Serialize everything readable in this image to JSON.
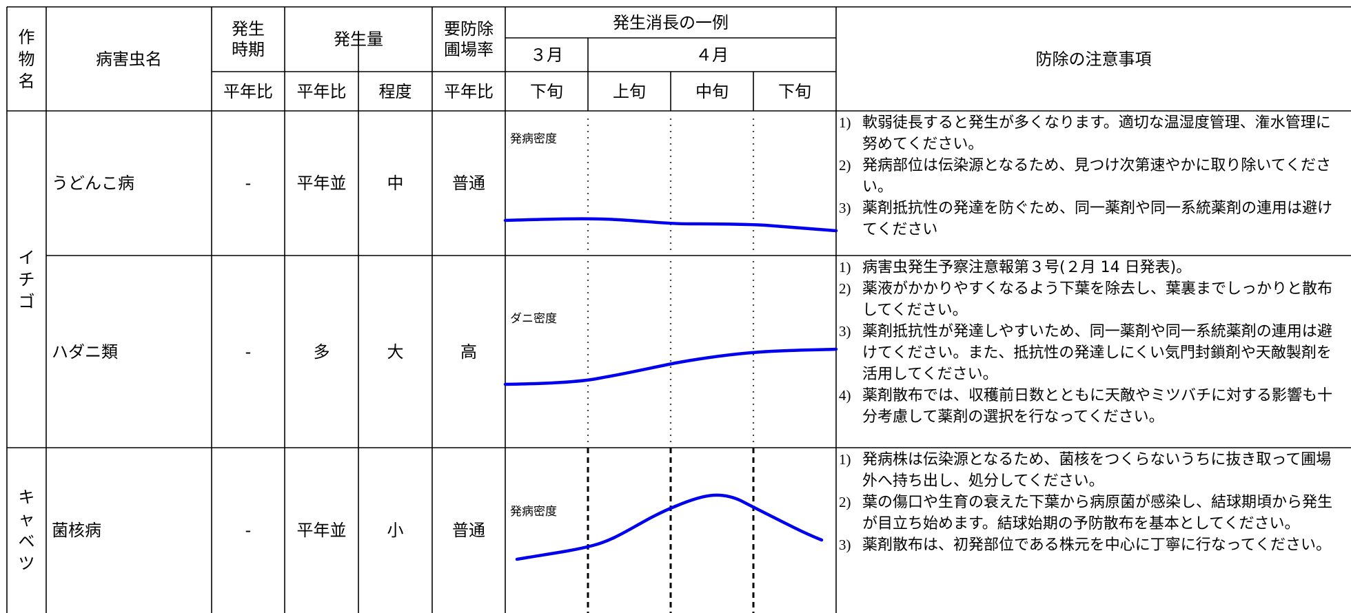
{
  "header": {
    "crop": [
      "作",
      "物",
      "名"
    ],
    "pest_name": "病害虫名",
    "period": "発生\n時期",
    "amount": "発生量",
    "control_rate": "要防除\n圃場率",
    "example": "発生消長の一例",
    "month3": "３月",
    "month4": "４月",
    "notes_title": "防除の注意事項",
    "sub_period": "平年比",
    "sub_amount_ratio": "平年比",
    "sub_amount_level": "程度",
    "sub_rate": "平年比",
    "dec_late": "下旬",
    "dec_early": "上旬",
    "dec_mid": "中旬",
    "dec_late2": "下旬"
  },
  "crops": [
    {
      "name": [
        "イ",
        "チ",
        "ゴ"
      ]
    },
    {
      "name": [
        "キ",
        "ャ",
        "ベ",
        "ツ"
      ]
    }
  ],
  "rows": [
    {
      "pest": "うどんこ病",
      "period": "-",
      "amount_ratio": "平年並",
      "amount_level": "中",
      "control_rate": "普通",
      "y_label": "発病密度",
      "notes": [
        {
          "num": "1)",
          "text": "軟弱徒長すると発生が多くなります。適切な温湿度管理、潅水管理に努めてください。"
        },
        {
          "num": "2)",
          "text": "発病部位は伝染源となるため、見つけ次第速やかに取り除いてください。"
        },
        {
          "num": "3)",
          "text": "薬剤抵抗性の発達を防ぐため、同一薬剤や同一系統薬剤の連用は避けてください"
        }
      ]
    },
    {
      "pest": "ハダニ類",
      "period": "-",
      "amount_ratio": "多",
      "amount_level": "大",
      "control_rate": "高",
      "y_label": "ダニ密度",
      "notes": [
        {
          "num": "1)",
          "text": "病害虫発生予察注意報第３号(２月 14 日発表)。"
        },
        {
          "num": "2)",
          "text": "薬液がかかりやすくなるよう下葉を除去し、葉裏までしっかりと散布してください。"
        },
        {
          "num": "3)",
          "text": "薬剤抵抗性が発達しやすいため、同一薬剤や同一系統薬剤の連用は避けてください。また、抵抗性の発達しにくい気門封鎖剤や天敵製剤を活用してください。"
        },
        {
          "num": "4)",
          "text": "薬剤散布では、収穫前日数とともに天敵やミツバチに対する影響も十分考慮して薬剤の選択を行なってください。"
        }
      ]
    },
    {
      "pest": "菌核病",
      "period": "-",
      "amount_ratio": "平年並",
      "amount_level": "小",
      "control_rate": "普通",
      "y_label": "発病密度",
      "notes": [
        {
          "num": "1)",
          "text": "発病株は伝染源となるため、菌核をつくらないうちに抜き取って圃場外へ持ち出し、処分してください。"
        },
        {
          "num": "2)",
          "text": "葉の傷口や生育の衰えた下葉から病原菌が感染し、結球期頃から発生が目立ち始めます。結球始期の予防散布を基本としてください。"
        },
        {
          "num": "3)",
          "text": "薬剤散布は、初発部位である株元を中心に丁寧に行なってください。"
        }
      ]
    }
  ],
  "colors": {
    "line": "#0000ee",
    "border": "#000000"
  }
}
